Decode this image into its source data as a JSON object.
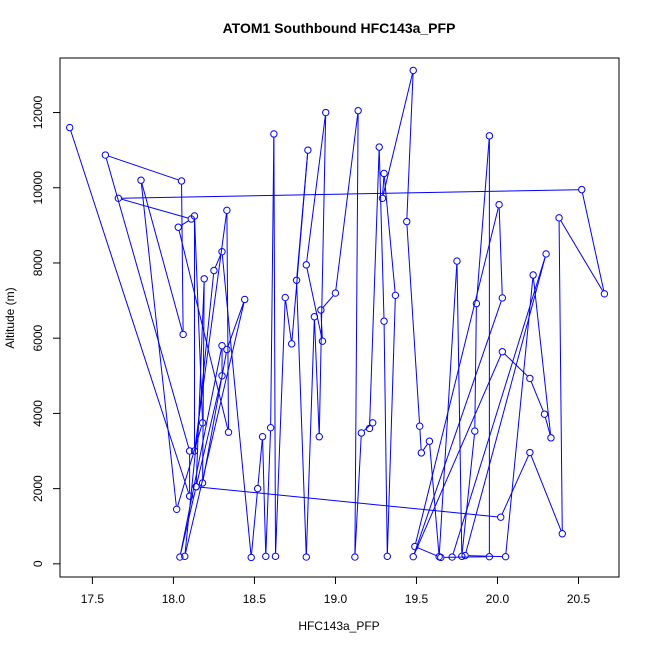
{
  "chart_data": {
    "type": "line",
    "title": "ATOM1 Southbound HFC143a_PFP",
    "xlabel": "HFC143a_PFP",
    "ylabel": "Altitude (m)",
    "xlim": [
      17.3,
      20.75
    ],
    "ylim": [
      -350,
      13450
    ],
    "x_ticks": [
      17.5,
      18.0,
      18.5,
      19.0,
      19.5,
      20.0,
      20.5
    ],
    "x_tick_labels": [
      "17.5",
      "18.0",
      "18.5",
      "19.0",
      "19.5",
      "20.0",
      "20.5"
    ],
    "y_ticks": [
      0,
      2000,
      4000,
      6000,
      8000,
      10000,
      12000
    ],
    "y_tick_labels": [
      "0",
      "2000",
      "4000",
      "6000",
      "8000",
      "10000",
      "12000"
    ],
    "series_color": "#0000ff",
    "grid": false,
    "legend": "none",
    "x": [
      17.36,
      18.1,
      18.1,
      17.58,
      18.05,
      18.06,
      17.8,
      18.02,
      18.18,
      18.13,
      18.13,
      18.33,
      18.34,
      18.03,
      18.11,
      17.66,
      20.52,
      20.66,
      20.38,
      20.4,
      20.2,
      20.02,
      18.14,
      18.3,
      18.3,
      18.04,
      18.14,
      18.19,
      18.18,
      18.33,
      18.44,
      18.07,
      18.25,
      18.3,
      18.48,
      18.52,
      18.55,
      18.57,
      18.6,
      18.62,
      18.63,
      18.69,
      18.73,
      18.83,
      18.76,
      18.82,
      18.87,
      18.9,
      18.94,
      18.82,
      18.92,
      18.91,
      19.0,
      19.14,
      19.12,
      19.16,
      19.23,
      19.21,
      19.27,
      19.3,
      19.32,
      19.37,
      19.3,
      19.29,
      19.48,
      19.44,
      19.52,
      19.53,
      19.58,
      19.64,
      19.75,
      19.78,
      19.86,
      19.87,
      19.95,
      19.95,
      19.65,
      19.49,
      20.01,
      20.03,
      19.48,
      20.03,
      20.2,
      20.29,
      20.33,
      20.22,
      20.05,
      19.8,
      20.3,
      19.72
    ],
    "y": [
      11600,
      1800,
      3000,
      10870,
      10180,
      6100,
      10200,
      1450,
      3750,
      9250,
      3000,
      9400,
      3500,
      8950,
      9170,
      9720,
      9950,
      7180,
      9200,
      800,
      2960,
      1240,
      2050,
      5000,
      5800,
      180,
      2050,
      7580,
      2150,
      5700,
      7030,
      200,
      7800,
      8300,
      170,
      2000,
      3380,
      200,
      3620,
      11430,
      200,
      7080,
      5850,
      11000,
      7540,
      180,
      6570,
      3380,
      12000,
      7950,
      5920,
      6750,
      7200,
      12050,
      180,
      3480,
      3750,
      3600,
      11080,
      6450,
      200,
      7140,
      10380,
      9720,
      13120,
      9100,
      3660,
      2950,
      3260,
      190,
      8050,
      200,
      3530,
      6920,
      11380,
      190,
      170,
      460,
      9550,
      7070,
      190,
      5640,
      4930,
      3980,
      3350,
      7680,
      190,
      220,
      8240,
      180
    ]
  }
}
